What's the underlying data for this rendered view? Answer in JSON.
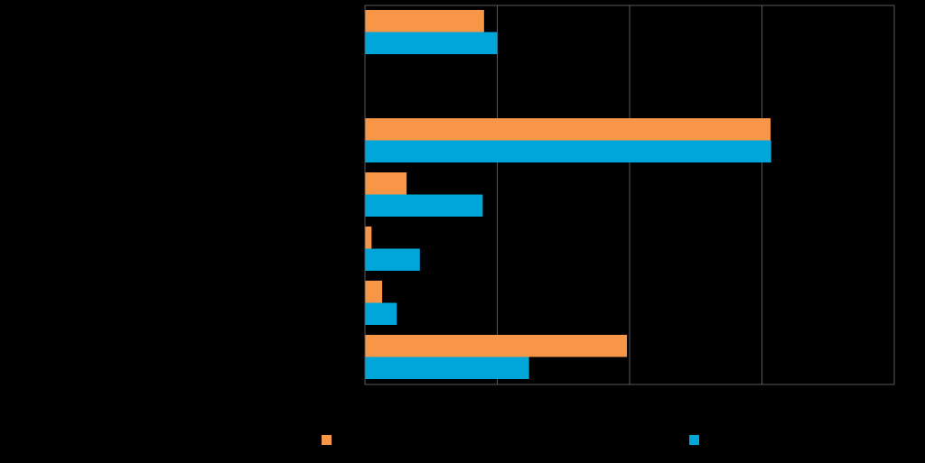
{
  "chart_data": {
    "type": "bar",
    "orientation": "horizontal",
    "categories": [
      "",
      "",
      "",
      "",
      "",
      "",
      ""
    ],
    "series": [
      {
        "values": [
          18,
          null,
          61.3,
          6.3,
          1,
          2.6,
          39.6
        ],
        "color": "#f79646"
      },
      {
        "values": [
          20,
          null,
          61.4,
          17.8,
          8.3,
          4.8,
          24.8
        ],
        "color": "#00a6d9"
      }
    ],
    "xlim": [
      0,
      80
    ],
    "x_gridlines": [
      20,
      40,
      60
    ],
    "grid": true,
    "legend_position": "bottom",
    "background_color": "#000000",
    "gridline_color": "#595959"
  }
}
